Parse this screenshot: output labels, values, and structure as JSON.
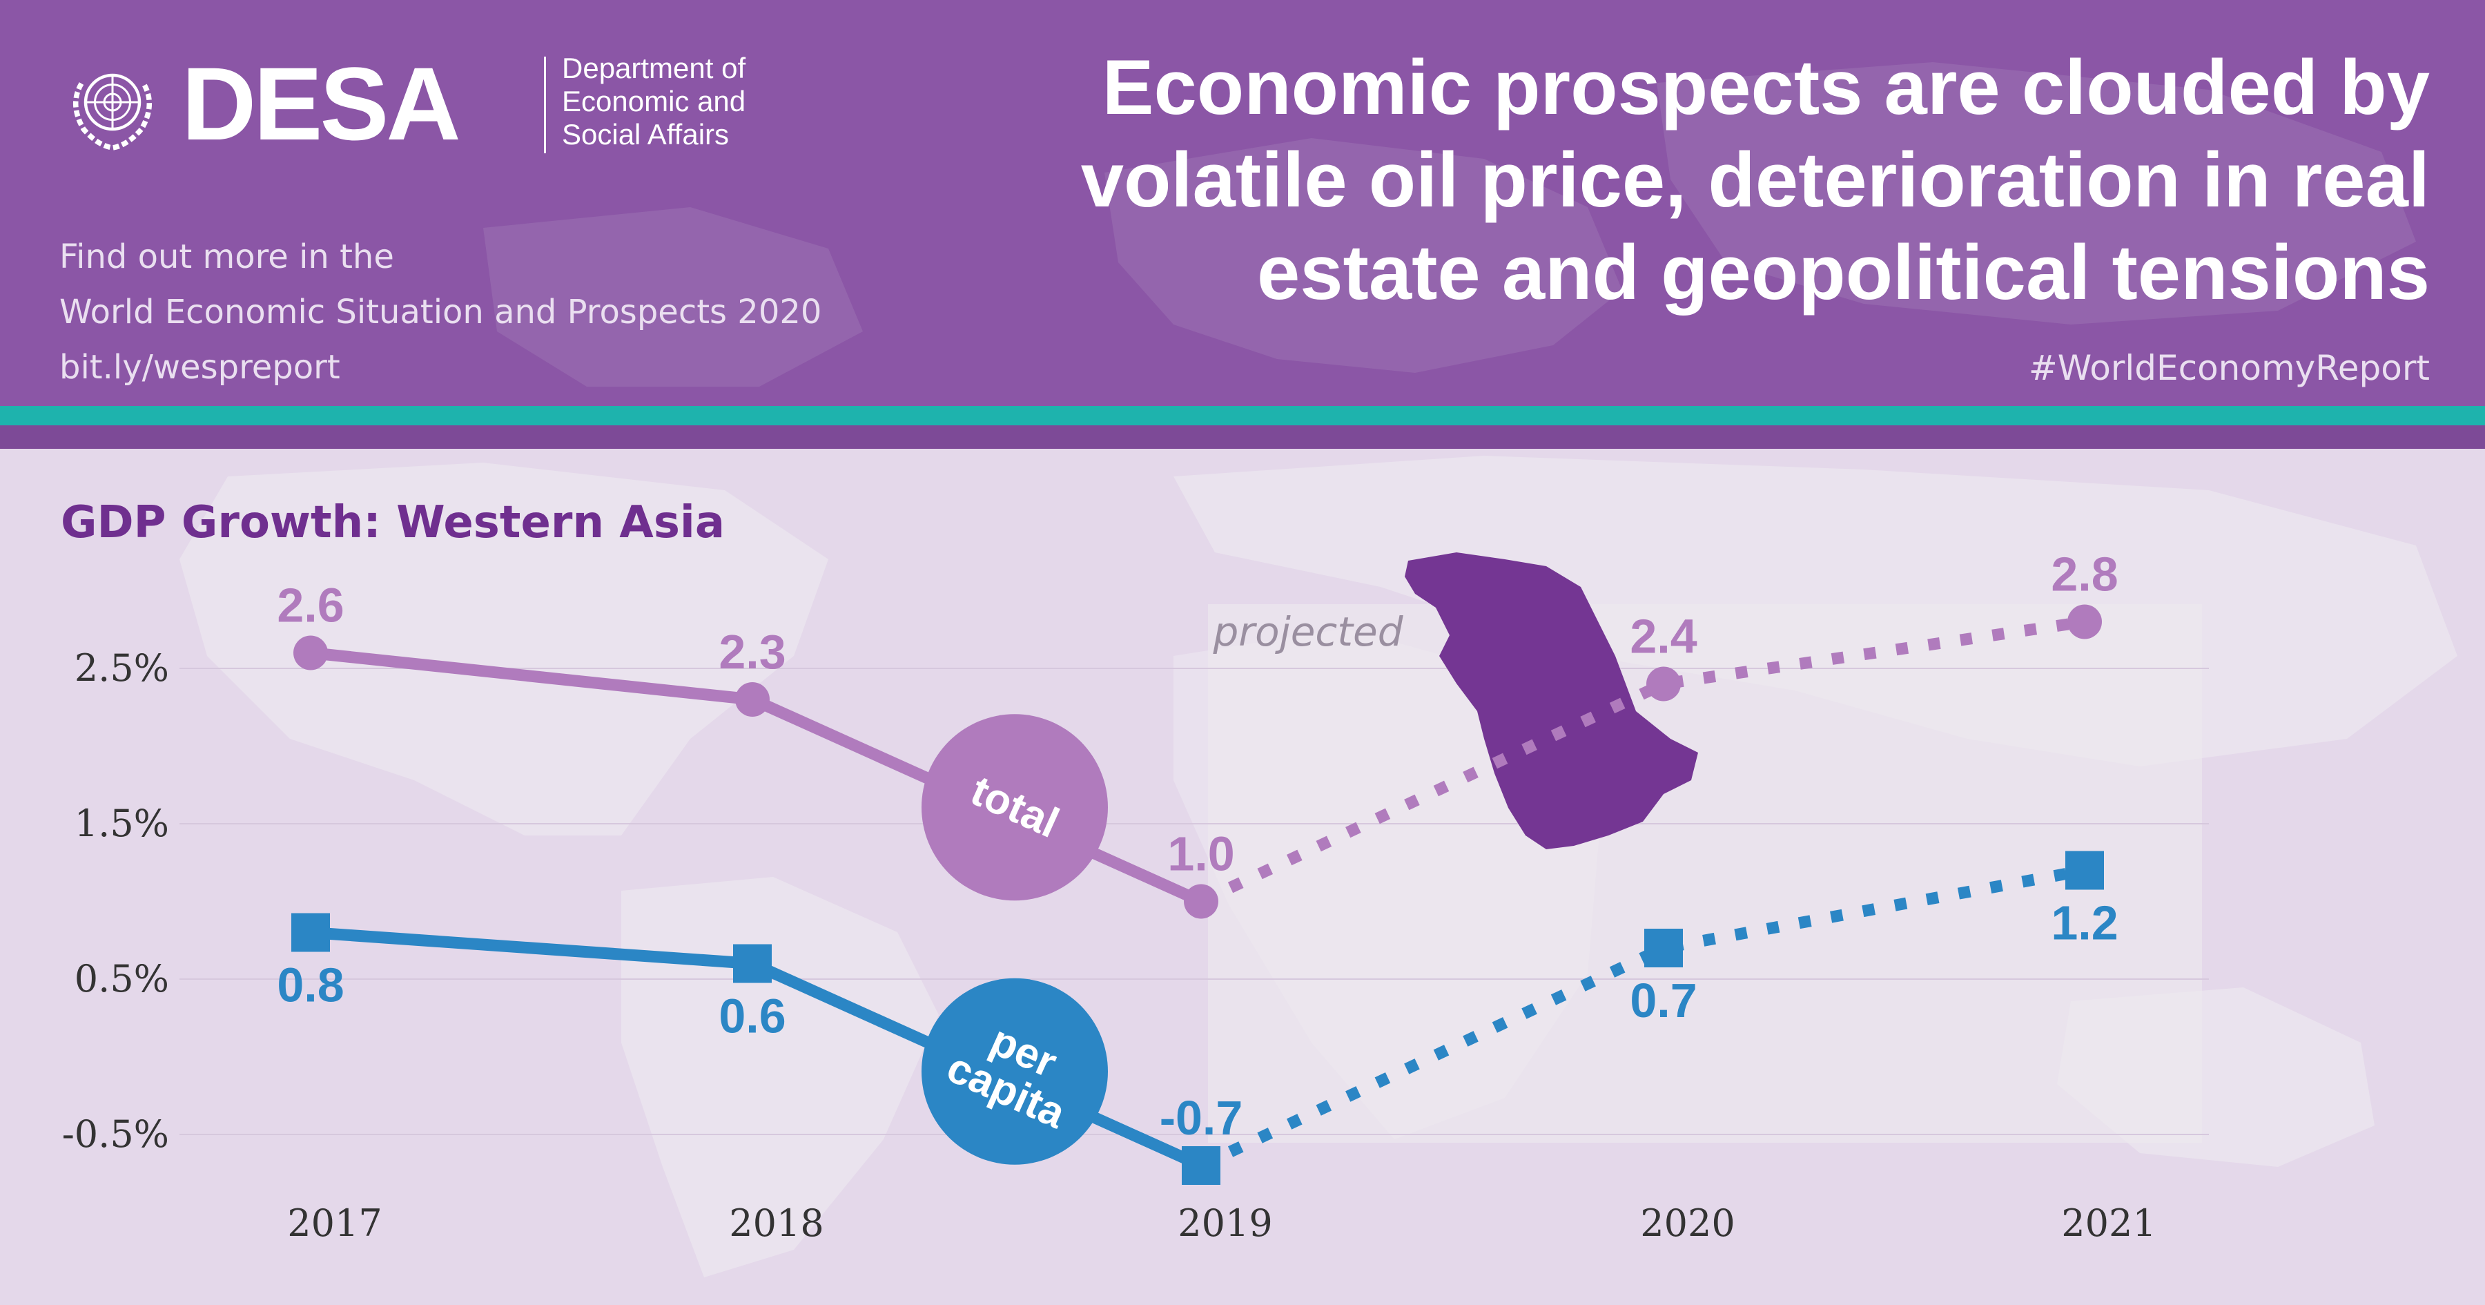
{
  "header": {
    "logo_word": "DESA",
    "logo_department_lines": [
      "Department of",
      "Economic and",
      "Social Affairs"
    ],
    "find_out_lines": [
      "Find out more in the",
      "World Economic Situation and Prospects 2020",
      "bit.ly/wespreport"
    ],
    "headline_lines": [
      "Economic prospects are clouded by",
      "volatile oil price, deterioration in real",
      "estate and geopolitical tensions"
    ],
    "hashtag": "#WorldEconomyReport"
  },
  "colors": {
    "header_bg": "#8b56a6",
    "accent_teal": "#1eb3ad",
    "chart_bg": "#e4d8ea",
    "total_series": "#b07bbd",
    "per_capita_series": "#2b86c5",
    "region_highlight": "#743693",
    "title": "#6f2f8f"
  },
  "icons": [
    "un-emblem-icon",
    "world-map-icon",
    "western-asia-map-icon"
  ],
  "chart_data": {
    "type": "line",
    "title": "GDP Growth: Western Asia",
    "x": [
      "2017",
      "2018",
      "2019",
      "2020",
      "2021"
    ],
    "y_tick_labels": [
      "2.5%",
      "1.5%",
      "0.5%",
      "-0.5%"
    ],
    "y_ticks": [
      2.5,
      1.5,
      0.5,
      -0.5
    ],
    "ylim": [
      -1.0,
      3.4
    ],
    "projected_label": "projected",
    "projected_from": "2019",
    "grid": true,
    "series": [
      {
        "name": "total",
        "values": [
          2.6,
          2.3,
          1.0,
          2.4,
          2.8
        ],
        "labels": [
          "2.6",
          "2.3",
          "1.0",
          "2.4",
          "2.8"
        ],
        "marker": "circle"
      },
      {
        "name": "per capita",
        "values": [
          0.8,
          0.6,
          -0.7,
          0.7,
          1.2
        ],
        "labels": [
          "0.8",
          "0.6",
          "-0.7",
          "0.7",
          "1.2"
        ],
        "marker": "square"
      }
    ]
  }
}
